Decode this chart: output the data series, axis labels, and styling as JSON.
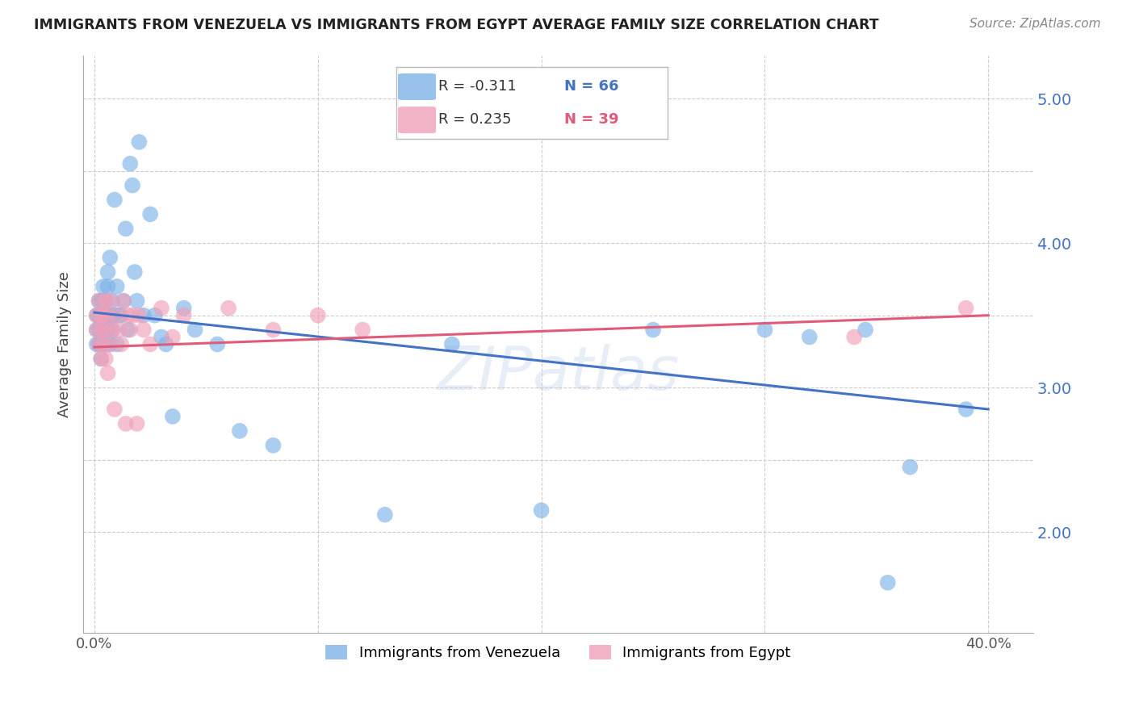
{
  "title": "IMMIGRANTS FROM VENEZUELA VS IMMIGRANTS FROM EGYPT AVERAGE FAMILY SIZE CORRELATION CHART",
  "source": "Source: ZipAtlas.com",
  "ylabel": "Average Family Size",
  "yticks": [
    2.0,
    3.0,
    4.0,
    5.0
  ],
  "yticklabels": [
    "2.00",
    "3.00",
    "4.00",
    "5.00"
  ],
  "ylim": [
    1.3,
    5.3
  ],
  "xlim": [
    -0.005,
    0.42
  ],
  "xticks": [
    0.0,
    0.1,
    0.2,
    0.3,
    0.4
  ],
  "xticklabels": [
    "0.0%",
    "",
    "",
    "",
    "40.0%"
  ],
  "grid_yticks": [
    2.0,
    2.5,
    3.0,
    3.5,
    4.0,
    4.5,
    5.0
  ],
  "grid_color": "#cccccc",
  "background_color": "#ffffff",
  "venezuela_color": "#7eb3e8",
  "egypt_color": "#f0a0b8",
  "venezuela_line_color": "#4472c4",
  "egypt_line_color": "#e05a7a",
  "legend_R_venezuela": "R = -0.311",
  "legend_N_venezuela": "N = 66",
  "legend_R_egypt": "R = 0.235",
  "legend_N_egypt": "N = 39",
  "watermark": "ZIPatlas",
  "venezuela_x": [
    0.001,
    0.001,
    0.001,
    0.002,
    0.002,
    0.002,
    0.002,
    0.003,
    0.003,
    0.003,
    0.003,
    0.003,
    0.004,
    0.004,
    0.004,
    0.004,
    0.005,
    0.005,
    0.005,
    0.005,
    0.005,
    0.006,
    0.006,
    0.006,
    0.006,
    0.007,
    0.007,
    0.007,
    0.008,
    0.008,
    0.008,
    0.009,
    0.009,
    0.01,
    0.01,
    0.011,
    0.012,
    0.013,
    0.014,
    0.015,
    0.016,
    0.017,
    0.018,
    0.019,
    0.02,
    0.022,
    0.025,
    0.027,
    0.03,
    0.032,
    0.035,
    0.04,
    0.045,
    0.055,
    0.065,
    0.08,
    0.13,
    0.16,
    0.2,
    0.25,
    0.3,
    0.32,
    0.345,
    0.355,
    0.365,
    0.39
  ],
  "venezuela_y": [
    3.5,
    3.4,
    3.3,
    3.6,
    3.5,
    3.4,
    3.3,
    3.6,
    3.5,
    3.4,
    3.3,
    3.2,
    3.7,
    3.6,
    3.5,
    3.4,
    3.6,
    3.5,
    3.4,
    3.3,
    3.5,
    3.8,
    3.7,
    3.5,
    3.4,
    3.9,
    3.5,
    3.3,
    3.6,
    3.5,
    3.4,
    4.3,
    3.5,
    3.7,
    3.3,
    3.5,
    3.5,
    3.6,
    4.1,
    3.4,
    4.55,
    4.4,
    3.8,
    3.6,
    4.7,
    3.5,
    4.2,
    3.5,
    3.35,
    3.3,
    2.8,
    3.55,
    3.4,
    3.3,
    2.7,
    2.6,
    2.12,
    3.3,
    2.15,
    3.4,
    3.4,
    3.35,
    3.4,
    1.65,
    2.45,
    2.85
  ],
  "egypt_x": [
    0.001,
    0.001,
    0.002,
    0.002,
    0.003,
    0.003,
    0.003,
    0.004,
    0.004,
    0.005,
    0.005,
    0.005,
    0.006,
    0.006,
    0.007,
    0.007,
    0.008,
    0.009,
    0.01,
    0.011,
    0.012,
    0.013,
    0.014,
    0.015,
    0.016,
    0.017,
    0.019,
    0.02,
    0.022,
    0.025,
    0.03,
    0.035,
    0.04,
    0.06,
    0.08,
    0.1,
    0.12,
    0.34,
    0.39
  ],
  "egypt_y": [
    3.5,
    3.4,
    3.6,
    3.3,
    3.5,
    3.4,
    3.2,
    3.5,
    3.3,
    3.6,
    3.4,
    3.2,
    3.5,
    3.1,
    3.6,
    3.3,
    3.4,
    2.85,
    3.5,
    3.4,
    3.3,
    3.6,
    2.75,
    3.5,
    3.4,
    3.5,
    2.75,
    3.5,
    3.4,
    3.3,
    3.55,
    3.35,
    3.5,
    3.55,
    3.4,
    3.5,
    3.4,
    3.35,
    3.55
  ],
  "ven_trend_x0": 0.0,
  "ven_trend_y0": 3.52,
  "ven_trend_x1": 0.4,
  "ven_trend_y1": 2.85,
  "egy_trend_x0": 0.0,
  "egy_trend_y0": 3.28,
  "egy_trend_x1": 0.4,
  "egy_trend_y1": 3.5
}
